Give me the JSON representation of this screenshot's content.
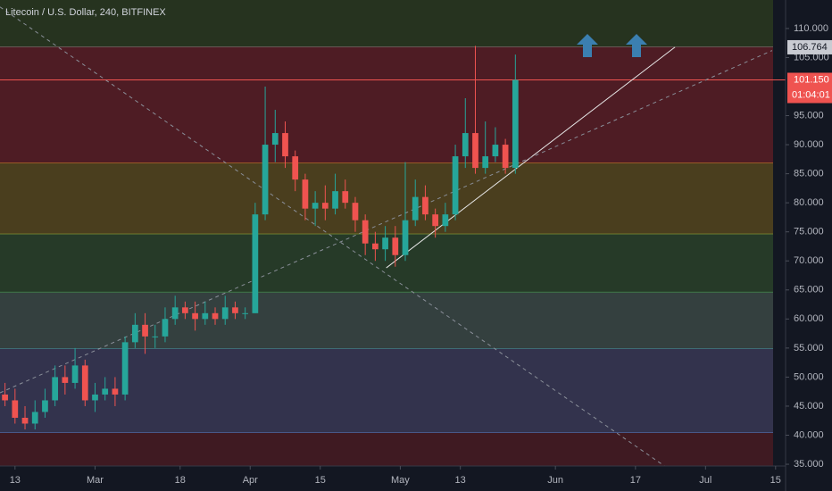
{
  "chart_data": {
    "type": "candlestick",
    "title": "Litecoin / U.S. Dollar, 240, BITFINEX",
    "background": "#131722",
    "up_color": "#26a69a",
    "down_color": "#ef5350",
    "xlim": [
      -3,
      154
    ],
    "ylim": [
      34.7,
      114.9
    ],
    "xticks": [
      {
        "value": 0,
        "label": "13"
      },
      {
        "value": 16,
        "label": "Mar"
      },
      {
        "value": 33,
        "label": "18"
      },
      {
        "value": 47,
        "label": "Apr"
      },
      {
        "value": 61,
        "label": "15"
      },
      {
        "value": 77,
        "label": "May"
      },
      {
        "value": 89,
        "label": "13"
      },
      {
        "value": 108,
        "label": "Jun"
      },
      {
        "value": 124,
        "label": "17"
      },
      {
        "value": 138,
        "label": "Jul"
      },
      {
        "value": 152,
        "label": "15"
      }
    ],
    "yticks": [
      {
        "value": 35,
        "label": "35.000"
      },
      {
        "value": 40,
        "label": "40.000"
      },
      {
        "value": 45,
        "label": "45.000"
      },
      {
        "value": 50,
        "label": "50.000"
      },
      {
        "value": 55,
        "label": "55.000"
      },
      {
        "value": 60,
        "label": "60.000"
      },
      {
        "value": 65,
        "label": "65.000"
      },
      {
        "value": 70,
        "label": "70.000"
      },
      {
        "value": 75,
        "label": "75.000"
      },
      {
        "value": 80,
        "label": "80.000"
      },
      {
        "value": 85,
        "label": "85.000"
      },
      {
        "value": 90,
        "label": "90.000"
      },
      {
        "value": 95,
        "label": "95.000"
      },
      {
        "value": 105,
        "label": "105.000"
      },
      {
        "value": 110,
        "label": "110.000"
      }
    ],
    "x": [
      -2,
      0,
      2,
      4,
      6,
      8,
      10,
      12,
      14,
      16,
      18,
      20,
      22,
      24,
      26,
      28,
      30,
      32,
      34,
      36,
      38,
      40,
      42,
      44,
      46,
      48,
      50,
      52,
      54,
      56,
      58,
      60,
      62,
      64,
      66,
      68,
      70,
      72,
      74,
      76,
      78,
      80,
      82,
      84,
      86,
      88,
      90,
      92,
      94,
      96,
      98,
      100
    ],
    "open": [
      47,
      46,
      43,
      42,
      44,
      46,
      50,
      49,
      52,
      46,
      47,
      48,
      47,
      56,
      59,
      57,
      57,
      60,
      62,
      61,
      60,
      61,
      60,
      62,
      61,
      61,
      78,
      90,
      92,
      88,
      84,
      79,
      80,
      79,
      82,
      80,
      77,
      73,
      72,
      74,
      71,
      77,
      81,
      78,
      76,
      78,
      88,
      92,
      86,
      88,
      90,
      86
    ],
    "high": [
      49,
      48,
      45,
      46,
      48,
      52,
      52,
      55,
      53,
      49,
      50,
      50,
      57,
      61,
      61,
      59,
      62,
      64,
      63,
      63,
      63,
      62,
      64,
      63,
      62,
      80,
      100,
      96,
      94,
      89,
      85,
      82,
      83,
      85,
      84,
      81,
      78,
      75,
      76,
      76,
      87,
      84,
      83,
      79,
      80,
      90,
      98,
      107,
      94,
      93,
      91,
      105.5
    ],
    "low": [
      45,
      42,
      41,
      41,
      43,
      45,
      47,
      48,
      45,
      44,
      46,
      45,
      46,
      55,
      54,
      55,
      56,
      59,
      60,
      58,
      59,
      59,
      59,
      60,
      60,
      61,
      77,
      87,
      86,
      82,
      77,
      76,
      77,
      78,
      79,
      75,
      71,
      70,
      70,
      69,
      70,
      76,
      77,
      74,
      75,
      77,
      86,
      85,
      85,
      87,
      85,
      85
    ],
    "close": [
      46,
      43,
      42,
      44,
      46,
      50,
      49,
      52,
      46,
      47,
      48,
      47,
      56,
      59,
      57,
      57,
      60,
      62,
      61,
      60,
      61,
      60,
      62,
      61,
      61,
      78,
      90,
      92,
      88,
      84,
      79,
      80,
      79,
      82,
      80,
      77,
      73,
      72,
      74,
      71,
      77,
      81,
      78,
      76,
      78,
      88,
      92,
      86,
      88,
      90,
      86,
      101.15
    ],
    "levels": [
      {
        "value": 106.764,
        "color": "#b08a96",
        "fill": "#26331f"
      },
      {
        "value": 86.8,
        "color": "#e08a2c",
        "fill": "#4e1c24"
      },
      {
        "value": 74.6,
        "color": "#9bb03a",
        "fill": "#4a3e1e"
      },
      {
        "value": 64.6,
        "color": "#4caf50",
        "fill": "#263a28"
      },
      {
        "value": 54.9,
        "color": "#4aa09a",
        "fill": "#34403f"
      },
      {
        "value": 40.4,
        "color": "#5b7fc8",
        "fill": "#33334d"
      }
    ],
    "bottom_fill": "#3f1a22",
    "level_label": {
      "value": 106.764
    },
    "last_price": {
      "value": 101.15,
      "label": "101.150",
      "color": "#ef5350"
    },
    "countdown": "01:04:01",
    "trendlines": [
      {
        "points": [
          [
            74.2,
            68.8
          ],
          [
            131.9,
            106.8
          ]
        ],
        "style": "solid",
        "color": "#e6e6e6"
      },
      {
        "points": [
          [
            -3,
            113.7
          ],
          [
            129.8,
            34.7
          ]
        ],
        "style": "dashed",
        "color": "#8a8f99"
      },
      {
        "points": [
          [
            -3,
            47.3
          ],
          [
            151.3,
            106.2
          ]
        ],
        "style": "dashed",
        "color": "#8a8f99"
      }
    ]
  }
}
